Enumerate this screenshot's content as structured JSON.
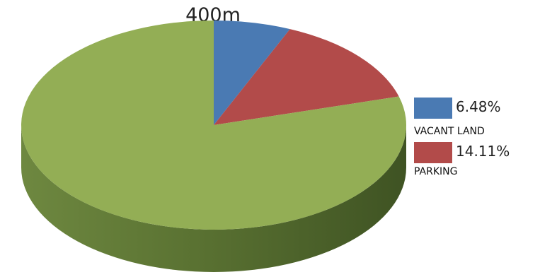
{
  "chart_data": {
    "type": "pie",
    "title": "400m",
    "three_d": true,
    "start_angle_deg": 0,
    "direction": "clockwise",
    "slices": [
      {
        "name": "VACANT LAND",
        "value": 6.48,
        "value_label": "6.48%",
        "color": "#4a7ab3",
        "in_legend": true
      },
      {
        "name": "PARKING",
        "value": 14.11,
        "value_label": "14.11%",
        "color": "#b24b4a",
        "in_legend": true
      },
      {
        "name": "",
        "value": 79.41,
        "value_label": "",
        "color": "#93ae55",
        "in_legend": false
      }
    ],
    "legend": {
      "position": "right",
      "entries": [
        {
          "value_label": "6.48%",
          "label": "VACANT LAND",
          "color": "#4a7ab3"
        },
        {
          "value_label": "14.11%",
          "label": "PARKING",
          "color": "#b24b4a"
        }
      ]
    }
  }
}
